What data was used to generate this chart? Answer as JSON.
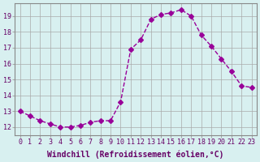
{
  "x": [
    0,
    1,
    2,
    3,
    4,
    5,
    6,
    7,
    8,
    9,
    10,
    11,
    12,
    13,
    14,
    15,
    16,
    17,
    18,
    19,
    20,
    21,
    22,
    23
  ],
  "y": [
    13.0,
    12.7,
    12.4,
    12.2,
    12.0,
    12.0,
    12.1,
    12.3,
    12.4,
    12.4,
    13.6,
    16.9,
    17.5,
    18.8,
    19.1,
    19.2,
    19.4,
    19.0,
    17.8,
    17.1,
    16.3,
    15.5,
    14.6,
    14.5
  ],
  "line_color": "#990099",
  "marker": "D",
  "marker_size": 3,
  "bg_color": "#d8f0f0",
  "grid_color": "#aaaaaa",
  "xlabel": "Windchill (Refroidissement éolien,°C)",
  "xlabel_color": "#660066",
  "xlabel_fontsize": 7,
  "tick_color": "#660066",
  "tick_fontsize": 6,
  "ytick_start": 12,
  "ytick_end": 19,
  "ytick_step": 1,
  "xlim": [
    -0.5,
    23.5
  ],
  "ylim": [
    11.5,
    19.8
  ]
}
